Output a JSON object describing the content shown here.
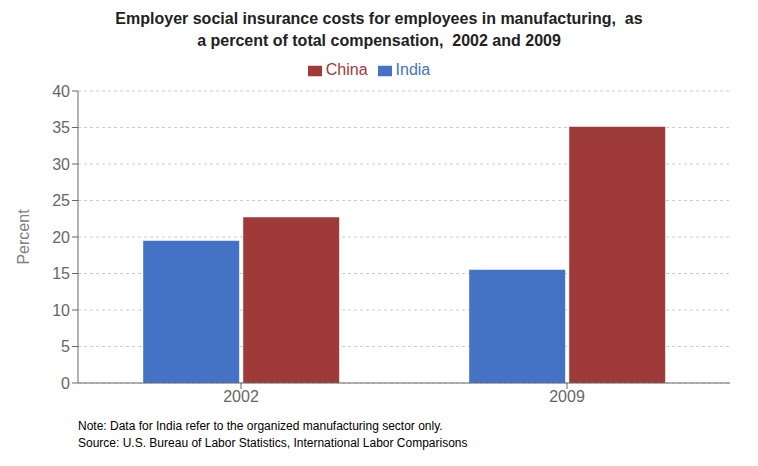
{
  "chart_data": {
    "type": "bar",
    "title": "Employer social insurance costs for employees in manufacturing,  as\na percent of total compensation,  2002 and 2009",
    "ylabel": "Percent",
    "categories": [
      "2002",
      "2009"
    ],
    "series": [
      {
        "name": "India",
        "color": "#4472C4",
        "values": [
          19.5,
          15.5
        ]
      },
      {
        "name": "China",
        "color": "#9E3A38",
        "values": [
          22.7,
          35.1
        ]
      }
    ],
    "ylim": [
      0,
      40
    ],
    "yticks": [
      0,
      5,
      10,
      15,
      20,
      25,
      30,
      35,
      40
    ],
    "grid": true,
    "legend": "top",
    "annotations": [
      "Note: Data for India refer to the organized manufacturing sector only.",
      "Source: U.S. Bureau of Labor Statistics, International Labor Comparisons"
    ]
  }
}
